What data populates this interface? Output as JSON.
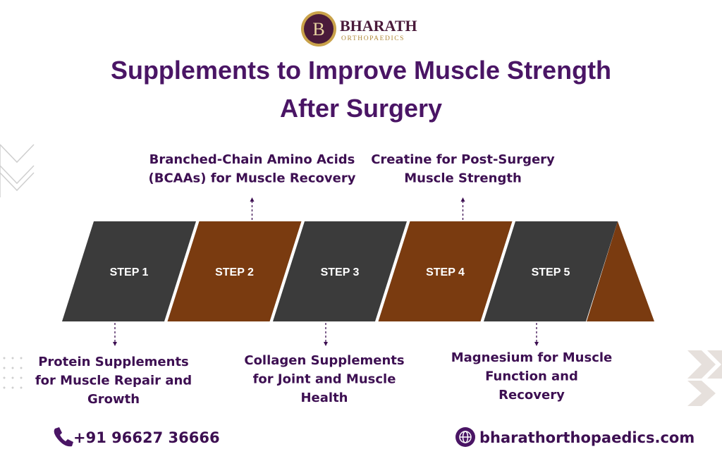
{
  "logo": {
    "initial": "B",
    "name": "BHARATH",
    "tagline": "ORTHOPAEDICS"
  },
  "title": [
    "Supplements to Improve Muscle Strength",
    "After Surgery"
  ],
  "steps": [
    {
      "label": "STEP 1",
      "description": [
        "Protein Supplements",
        "for Muscle Repair and",
        "Growth"
      ]
    },
    {
      "label": "STEP 2",
      "description": [
        "Branched-Chain Amino Acids",
        "(BCAAs) for Muscle Recovery"
      ]
    },
    {
      "label": "STEP 3",
      "description": [
        "Collagen Supplements",
        "for Joint and Muscle",
        "Health"
      ]
    },
    {
      "label": "STEP 4",
      "description": [
        "Creatine for Post-Surgery",
        "Muscle Strength"
      ]
    },
    {
      "label": "STEP 5",
      "description": [
        "Magnesium for Muscle",
        "Function and",
        "Recovery"
      ]
    }
  ],
  "footer": {
    "phone": "+91 96627 36666",
    "website": "bharathorthopaedics.com"
  }
}
